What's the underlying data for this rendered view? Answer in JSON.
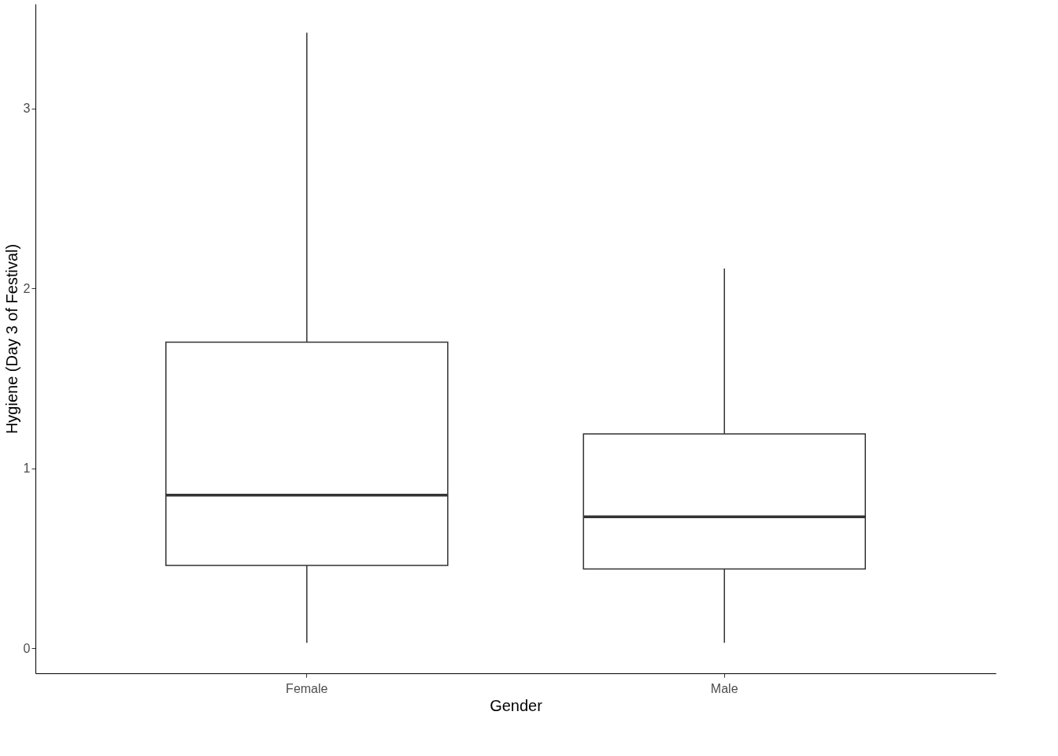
{
  "chart_data": {
    "type": "box",
    "xlabel": "Gender",
    "ylabel": "Hygiene (Day 3 of Festival)",
    "categories": [
      "Female",
      "Male"
    ],
    "boxes": [
      {
        "low": 0.03,
        "q1": 0.46,
        "median": 0.85,
        "q3": 1.7,
        "high": 3.42
      },
      {
        "low": 0.03,
        "q1": 0.44,
        "median": 0.73,
        "q3": 1.19,
        "high": 2.11
      }
    ],
    "ylim": [
      -0.14,
      3.58
    ],
    "yticks": [
      0,
      1,
      2,
      3
    ],
    "grid": false
  }
}
